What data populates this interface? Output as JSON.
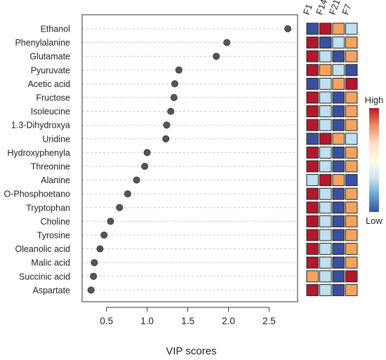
{
  "chart_data": {
    "type": "scatter",
    "xlabel": "VIP scores",
    "xlim": [
      0.2,
      2.85
    ],
    "xticks": [
      0.5,
      1.0,
      1.5,
      2.0,
      2.5
    ],
    "xtick_labels": [
      "0.5",
      "1.0",
      "1.5",
      "2.0",
      "2.5"
    ],
    "grid": "horizontal dashed",
    "point_color": "#555555",
    "categories": [
      "Ethanol",
      "Phenylalanine",
      "Glutamate",
      "Pyuruvate",
      "Acetic acid",
      "Fructose",
      "Isoleucine",
      "1.3-Dihydroxya",
      "Uridine",
      "Hydroxyphenyla",
      "Threonine",
      "Alanine",
      "O-Phosphoetano",
      "Tryptophan",
      "Choline",
      "Tyrosine",
      "Oleanolic acid",
      "Malic acid",
      "Succinic acid",
      "Aspartate"
    ],
    "values": [
      2.73,
      1.98,
      1.85,
      1.39,
      1.34,
      1.33,
      1.29,
      1.24,
      1.23,
      1.0,
      0.97,
      0.87,
      0.76,
      0.66,
      0.55,
      0.47,
      0.42,
      0.35,
      0.34,
      0.31
    ],
    "heatmap": {
      "columns": [
        "F1",
        "F14",
        "F21",
        "F7"
      ],
      "levels": [
        [
          "low",
          "high",
          "mid_high",
          "mid_low"
        ],
        [
          "high",
          "low",
          "mid_low",
          "mid_high"
        ],
        [
          "high",
          "mid_low",
          "low",
          "mid_high"
        ],
        [
          "high",
          "mid_high",
          "mid_low",
          "low"
        ],
        [
          "low",
          "mid_low",
          "mid_high",
          "high"
        ],
        [
          "high",
          "mid_low",
          "low",
          "mid_high"
        ],
        [
          "high",
          "mid_low",
          "low",
          "mid_high"
        ],
        [
          "high",
          "mid_low",
          "low",
          "mid_high"
        ],
        [
          "low",
          "high",
          "mid_high",
          "mid_low"
        ],
        [
          "high",
          "mid_low",
          "low",
          "mid_high"
        ],
        [
          "high",
          "mid_low",
          "low",
          "mid_high"
        ],
        [
          "mid_low",
          "high",
          "mid_high",
          "low"
        ],
        [
          "high",
          "mid_low",
          "low",
          "mid_high"
        ],
        [
          "high",
          "mid_low",
          "low",
          "mid_high"
        ],
        [
          "high",
          "mid_low",
          "low",
          "mid_high"
        ],
        [
          "high",
          "mid_low",
          "low",
          "mid_high"
        ],
        [
          "high",
          "mid_low",
          "low",
          "mid_high"
        ],
        [
          "high",
          "mid_low",
          "low",
          "mid_high"
        ],
        [
          "mid_high",
          "mid_low",
          "low",
          "high"
        ],
        [
          "high",
          "mid_low",
          "low",
          "mid_high"
        ]
      ],
      "colors": {
        "high": "#b2182b",
        "mid_high": "#f4a460",
        "mid_low": "#bfe0ee",
        "low": "#3a4fa0"
      }
    },
    "legend": {
      "high_label": "High",
      "low_label": "Low",
      "placement": "right",
      "gradient": [
        "#b2182b",
        "#ef8a62",
        "#fddbc7",
        "#fffde0",
        "#d1e5f0",
        "#67a9cf",
        "#3a4fa0"
      ]
    }
  }
}
